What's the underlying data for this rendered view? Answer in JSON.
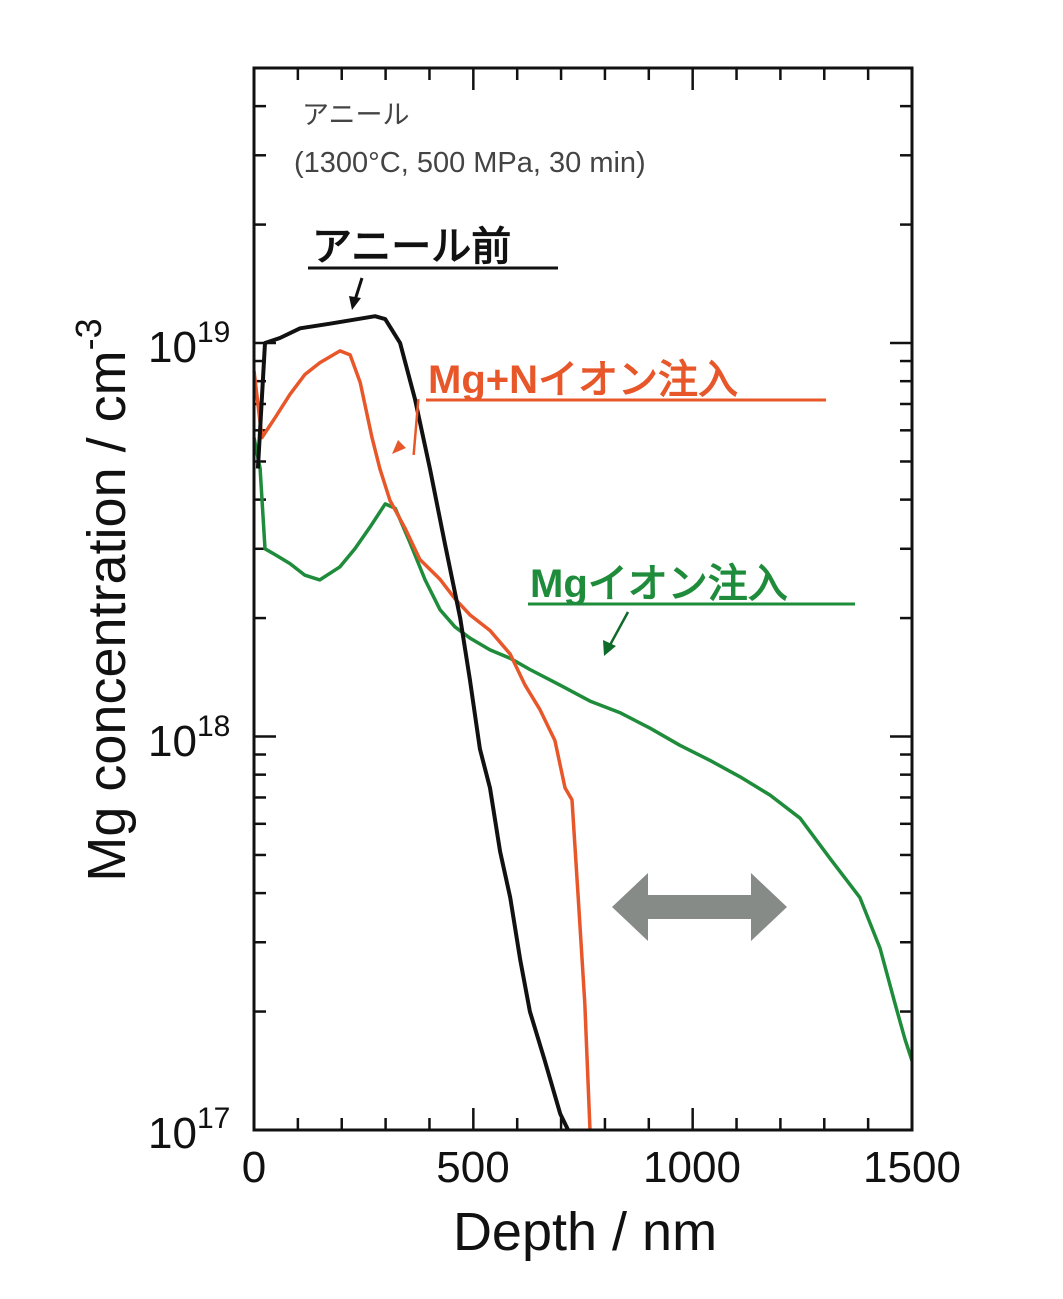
{
  "chart_data": {
    "type": "line",
    "title": "",
    "xlabel": "Depth / nm",
    "ylabel": "Mg concentration / cm",
    "ylabel_superscript": "-3",
    "xlim": [
      0,
      1500
    ],
    "ylim": [
      1e+17,
      5e+19
    ],
    "yscale": "log",
    "grid": false,
    "x_ticks": [
      "0",
      "500",
      "1000",
      "1500"
    ],
    "y_ticks": [
      {
        "base": "10",
        "exp": "17"
      },
      {
        "base": "10",
        "exp": "18"
      },
      {
        "base": "10",
        "exp": "19"
      }
    ],
    "annotation_condition": {
      "line1": "アニール",
      "line2": "(1300°C, 500 MPa, 30 min)"
    },
    "series": [
      {
        "name": "アニール前",
        "color": "#111111",
        "points": [
          [
            9,
            4.8e+18
          ],
          [
            25,
            1e+19
          ],
          [
            59,
            1.03e+19
          ],
          [
            105,
            1.09e+19
          ],
          [
            173,
            1.12e+19
          ],
          [
            276,
            1.17e+19
          ],
          [
            299,
            1.15e+19
          ],
          [
            333,
            1e+19
          ],
          [
            367,
            7.2e+18
          ],
          [
            401,
            4.8e+18
          ],
          [
            435,
            3.1e+18
          ],
          [
            470,
            2e+18
          ],
          [
            492,
            1.4e+18
          ],
          [
            515,
            9.3e+17
          ],
          [
            538,
            7.4e+17
          ],
          [
            561,
            5.1e+17
          ],
          [
            584,
            3.9e+17
          ],
          [
            607,
            2.7e+17
          ],
          [
            629,
            2e+17
          ],
          [
            663,
            1.5e+17
          ],
          [
            698,
            1.1e+17
          ],
          [
            716,
            1e+17
          ]
        ]
      },
      {
        "name": "Mg+Nイオン注入",
        "color": "#e8572a",
        "points": [
          [
            0,
            8.5e+18
          ],
          [
            18,
            5.75e+18
          ],
          [
            48,
            6.46e+18
          ],
          [
            82,
            7.41e+18
          ],
          [
            116,
            8.32e+18
          ],
          [
            150,
            8.91e+18
          ],
          [
            196,
            9.55e+18
          ],
          [
            219,
            9.33e+18
          ],
          [
            242,
            7.94e+18
          ],
          [
            269,
            5.75e+18
          ],
          [
            287,
            4.79e+18
          ],
          [
            310,
            3.98e+18
          ],
          [
            344,
            3.39e+18
          ],
          [
            378,
            2.82e+18
          ],
          [
            424,
            2.51e+18
          ],
          [
            458,
            2.24e+18
          ],
          [
            492,
            2.04e+18
          ],
          [
            538,
            1.86e+18
          ],
          [
            584,
            1.62e+18
          ],
          [
            618,
            1.35e+18
          ],
          [
            652,
            1.17e+18
          ],
          [
            686,
            9.77e+17
          ],
          [
            709,
            7.41e+17
          ],
          [
            725,
            6.9e+17
          ],
          [
            739,
            3.9e+17
          ],
          [
            754,
            2.1e+17
          ],
          [
            766,
            1e+17
          ]
        ]
      },
      {
        "name": "Mgイオン注入",
        "color": "#1e8c3a",
        "points": [
          [
            0,
            5.75e+18
          ],
          [
            14,
            4.8e+18
          ],
          [
            25,
            3e+18
          ],
          [
            48,
            2.9e+18
          ],
          [
            82,
            2.75e+18
          ],
          [
            116,
            2.57e+18
          ],
          [
            150,
            2.5e+18
          ],
          [
            196,
            2.7e+18
          ],
          [
            230,
            3e+18
          ],
          [
            264,
            3.4e+18
          ],
          [
            299,
            3.9e+18
          ],
          [
            322,
            3.8e+18
          ],
          [
            356,
            3.1e+18
          ],
          [
            390,
            2.5e+18
          ],
          [
            424,
            2.1e+18
          ],
          [
            458,
            1.9e+18
          ],
          [
            492,
            1.78e+18
          ],
          [
            538,
            1.66e+18
          ],
          [
            584,
            1.58e+18
          ],
          [
            629,
            1.48e+18
          ],
          [
            698,
            1.35e+18
          ],
          [
            766,
            1.23e+18
          ],
          [
            834,
            1.15e+18
          ],
          [
            903,
            1.05e+18
          ],
          [
            971,
            9.5e+17
          ],
          [
            1039,
            8.7e+17
          ],
          [
            1108,
            7.9e+17
          ],
          [
            1176,
            7.1e+17
          ],
          [
            1245,
            6.2e+17
          ],
          [
            1313,
            4.9e+17
          ],
          [
            1381,
            3.9e+17
          ],
          [
            1427,
            2.9e+17
          ],
          [
            1461,
            2.1e+17
          ],
          [
            1484,
            1.7e+17
          ],
          [
            1500,
            1.5e+17
          ]
        ]
      }
    ],
    "double_arrow_color": "#868b87"
  }
}
